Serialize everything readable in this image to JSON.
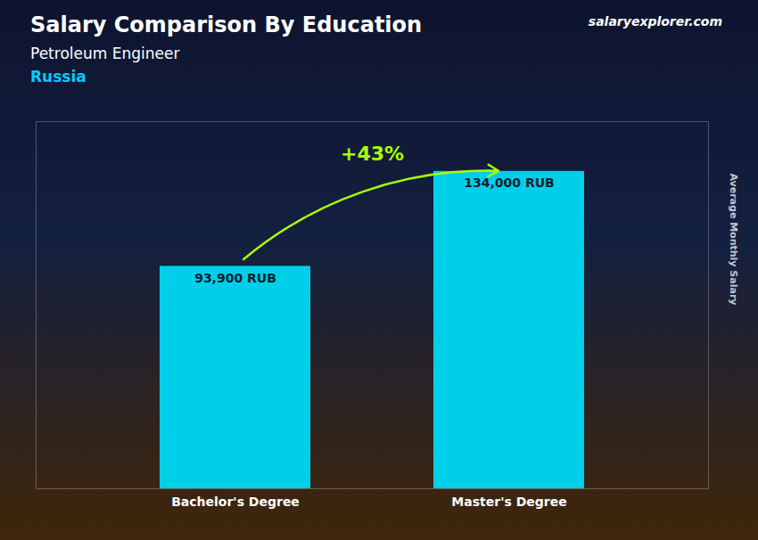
{
  "chart_data": {
    "type": "bar",
    "title": "Salary Comparison By Education",
    "subtitle": "Petroleum Engineer",
    "annotations": [
      {
        "text": "Russia"
      },
      {
        "text": "salaryexplorer.com"
      },
      {
        "text": "+43%",
        "color": "#aaff00"
      }
    ],
    "y_label": "Average Monthly Salary",
    "categories": [
      "Bachelor's Degree",
      "Master's Degree"
    ],
    "values": [
      93900,
      134000
    ],
    "value_labels": [
      "93,900 RUB",
      "134,000 RUB"
    ],
    "data_labels": true,
    "color": "#00cfea",
    "ylim": [
      0,
      155000
    ],
    "tick_labels": "x",
    "grid": false
  }
}
